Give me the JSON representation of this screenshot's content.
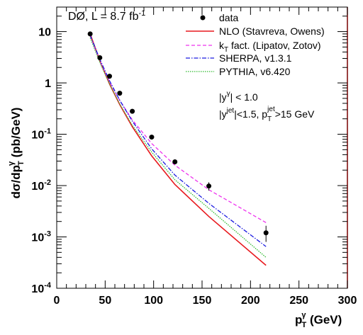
{
  "chart_data": {
    "type": "scatter",
    "experiment_label": "DØ, L = 8.7 fb",
    "experiment_label_sup": "-1",
    "xlabel": "p",
    "xlabel_sup": "γ",
    "xlabel_sub": "T",
    "xlabel_unit": " (GeV)",
    "ylabel_main": "dσ/dp",
    "ylabel_sup": "γ",
    "ylabel_sub": "T",
    "ylabel_unit": " (pb/GeV)",
    "xlim": [
      0,
      300
    ],
    "ylim": [
      0.0001,
      30
    ],
    "yscale": "log",
    "xticks": [
      0,
      50,
      100,
      150,
      200,
      250,
      300
    ],
    "yticks": [
      {
        "value": 0.0001,
        "mant": "10",
        "exp": "-4"
      },
      {
        "value": 0.001,
        "mant": "10",
        "exp": "-3"
      },
      {
        "value": 0.01,
        "mant": "10",
        "exp": "-2"
      },
      {
        "value": 0.1,
        "mant": "10",
        "exp": "-1"
      },
      {
        "value": 1,
        "mant": "1",
        "exp": ""
      },
      {
        "value": 10,
        "mant": "10",
        "exp": ""
      }
    ],
    "grid": false,
    "legend_position": "top-right",
    "cuts": [
      {
        "pre": "|y",
        "sup": "γ",
        "post": "| < 1.0"
      },
      {
        "pre": "|y",
        "sup": "jet",
        "post": "|<1.5, p",
        "sub2": "T",
        "sup2": "jet",
        "post2": ">15 GeV"
      }
    ],
    "data": {
      "name": "data",
      "color": "#000000",
      "x": [
        34.5,
        44.5,
        54.5,
        65,
        78,
        98,
        122,
        157,
        216
      ],
      "y": [
        9.0,
        3.1,
        1.35,
        0.63,
        0.28,
        0.088,
        0.029,
        0.0098,
        0.0012
      ],
      "err_up": [
        0,
        0,
        0,
        0,
        0,
        0.007,
        0.003,
        0.0018,
        0.00045
      ],
      "err_down": [
        0,
        0,
        0,
        0,
        0,
        0.007,
        0.003,
        0.0018,
        0.0004
      ]
    },
    "series": [
      {
        "name": "NLO (Stavreva, Owens)",
        "color": "#e8191e",
        "dash": "",
        "x": [
          34.5,
          44.5,
          54.5,
          65,
          78,
          98,
          122,
          157,
          216
        ],
        "y": [
          9.0,
          2.7,
          0.95,
          0.38,
          0.14,
          0.038,
          0.0105,
          0.0025,
          0.00028
        ]
      },
      {
        "name": "k_T fact. (Lipatov, Zotov)",
        "label_pre": "k",
        "label_sub": "T",
        "label_post": " fact. (Lipatov, Zotov)",
        "color": "#ee33ee",
        "dash": "5,3",
        "x": [
          34.5,
          44.5,
          54.5,
          65,
          78,
          98,
          122,
          157,
          216
        ],
        "y": [
          8.2,
          2.7,
          1.05,
          0.46,
          0.19,
          0.066,
          0.025,
          0.0083,
          0.0019
        ]
      },
      {
        "name": "SHERPA, v1.3.1",
        "color": "#1a1ae0",
        "dash": "6,2,1.5,2",
        "x": [
          34.5,
          44.5,
          54.5,
          65,
          78,
          98,
          122,
          157,
          216
        ],
        "y": [
          8.5,
          2.9,
          1.1,
          0.46,
          0.18,
          0.052,
          0.016,
          0.0045,
          0.00065
        ]
      },
      {
        "name": "PYTHIA, v6.420",
        "color": "#33bb33",
        "dash": "1.5,1.5",
        "x": [
          34.5,
          44.5,
          54.5,
          65,
          78,
          98,
          122,
          157,
          216
        ],
        "y": [
          7.6,
          2.5,
          0.95,
          0.39,
          0.15,
          0.045,
          0.013,
          0.0036,
          0.0004
        ]
      }
    ]
  }
}
